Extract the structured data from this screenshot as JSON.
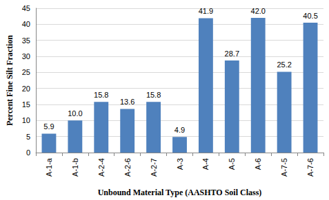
{
  "chart_data": {
    "type": "bar",
    "xlabel": "Unbound Material Type (AASHTO Soil Class)",
    "ylabel": "Percent Fine Silt Fraction",
    "categories": [
      "A-1-a",
      "A-1-b",
      "A-2-4",
      "A-2-6",
      "A-2-7",
      "A-3",
      "A-4",
      "A-5",
      "A-6",
      "A-7-5",
      "A-7-6"
    ],
    "values": [
      5.9,
      10.0,
      15.8,
      13.6,
      15.8,
      4.9,
      41.9,
      28.7,
      42.0,
      25.2,
      40.5
    ],
    "value_labels": [
      "5.9",
      "10.0",
      "15.8",
      "13.6",
      "15.8",
      "4.9",
      "41.9",
      "28.7",
      "42.0",
      "25.2",
      "40.5"
    ],
    "color": "#4f81bd",
    "ylim": [
      0,
      45
    ],
    "yticks": [
      0,
      5,
      10,
      15,
      20,
      25,
      30,
      35,
      40,
      45
    ],
    "grid": true,
    "data_labels": true
  }
}
